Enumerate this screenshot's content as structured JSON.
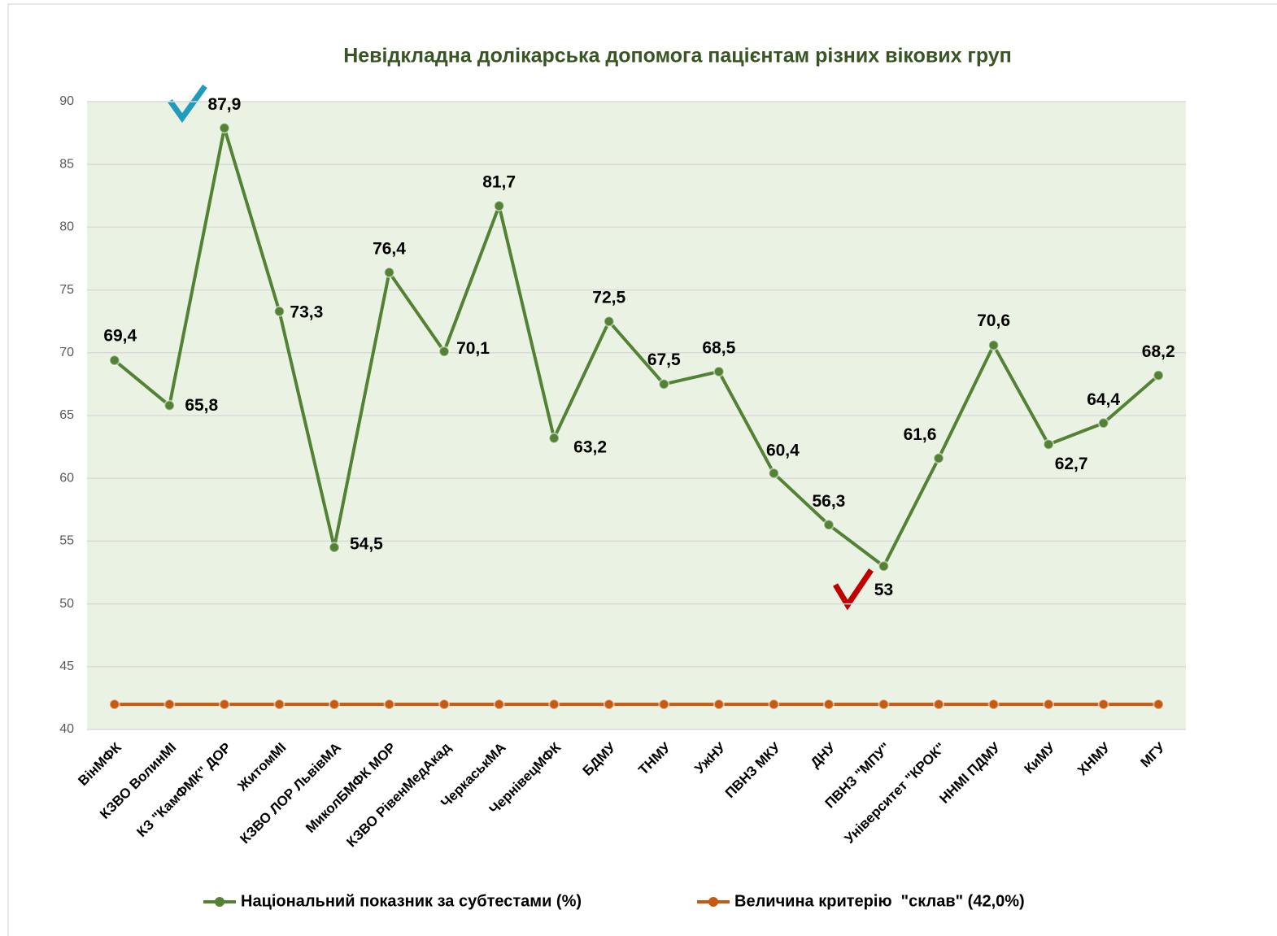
{
  "chart_data": {
    "type": "line",
    "title": "Невідкладна долікарська допомога пацієнтам різних вікових груп",
    "categories": [
      "ВінМФК",
      "КЗВО ВолинМІ",
      "КЗ \"КамФМК\" ДОР",
      "ЖитомМІ",
      "КЗВО ЛОР ЛьвівМА",
      "МиколБМФК МОР",
      "КЗВО РівенМедАкад",
      "ЧеркаськМА",
      "ЧернівецМФК",
      "БДМУ",
      "ТНМУ",
      "УжНУ",
      "ПВНЗ МКУ",
      "ДНУ",
      "ПВНЗ \"МПУ\"",
      "Університет \"КРОК\"",
      "ННМІ ПДМУ",
      "КиМУ",
      "ХНМУ",
      "МГУ"
    ],
    "series": [
      {
        "name": "Національний показник за субтестами (%)",
        "color": "#548235",
        "values": [
          69.4,
          65.8,
          87.9,
          73.3,
          54.5,
          76.4,
          70.1,
          81.7,
          63.2,
          72.5,
          67.5,
          68.5,
          60.4,
          56.3,
          53,
          61.6,
          70.6,
          62.7,
          64.4,
          68.2
        ],
        "value_labels": [
          "69,4",
          "65,8",
          "87,9",
          "73,3",
          "54,5",
          "76,4",
          "70,1",
          "81,7",
          "63,2",
          "72,5",
          "67,5",
          "68,5",
          "60,4",
          "56,3",
          "53",
          "61,6",
          "70,6",
          "62,7",
          "64,4",
          "68,2"
        ]
      },
      {
        "name": "Величина критерію  \"склав\" (42,0%)",
        "color": "#c55a11",
        "values": [
          42,
          42,
          42,
          42,
          42,
          42,
          42,
          42,
          42,
          42,
          42,
          42,
          42,
          42,
          42,
          42,
          42,
          42,
          42,
          42
        ]
      }
    ],
    "ylim": [
      40,
      90
    ],
    "yticks": [
      40,
      45,
      50,
      55,
      60,
      65,
      70,
      75,
      80,
      85,
      90
    ],
    "grid": true,
    "legend": "bottom"
  }
}
